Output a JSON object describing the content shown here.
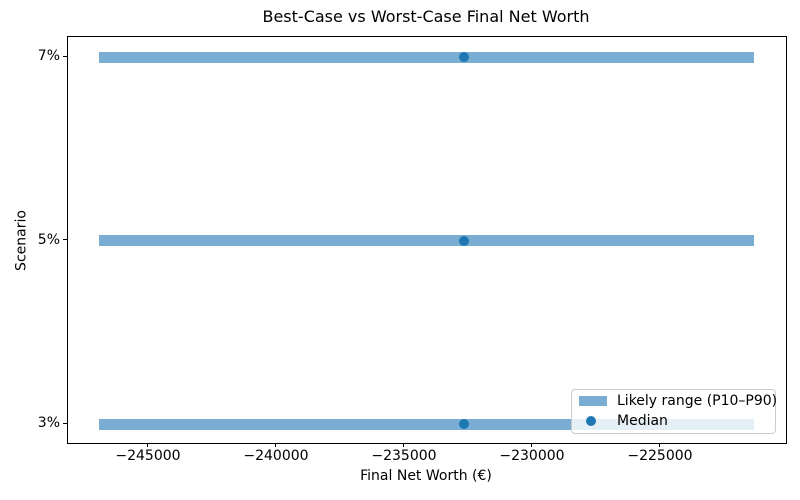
{
  "chart_data": {
    "type": "hbar-range",
    "title": "Best-Case vs Worst-Case Final Net Worth",
    "xlabel": "Final Net Worth (€)",
    "ylabel": "Scenario",
    "categories": [
      "7%",
      "5%",
      "3%"
    ],
    "rows": [
      {
        "scenario": "7%",
        "p10": -246950,
        "median": -232700,
        "p90": -221350
      },
      {
        "scenario": "5%",
        "p10": -246950,
        "median": -232700,
        "p90": -221350
      },
      {
        "scenario": "3%",
        "p10": -246950,
        "median": -232700,
        "p90": -221350
      }
    ],
    "x_axis": {
      "tick_values": [
        -245000,
        -240000,
        -235000,
        -230000,
        -225000
      ],
      "tick_labels": [
        "−245000",
        "−240000",
        "−235000",
        "−230000",
        "−225000"
      ],
      "range": [
        -248164,
        -220117
      ]
    },
    "legend": {
      "position": "lower right",
      "entries": [
        {
          "label": "Likely range (P10–P90)",
          "marker": "range-bar"
        },
        {
          "label": "Median",
          "marker": "median-dot"
        }
      ]
    },
    "colors": {
      "range_bar": "#1f77b4",
      "range_bar_alpha": 0.6,
      "median_dot": "#1f77b4",
      "background": "#ffffff",
      "text": "#000000",
      "legend_border": "#cccccc"
    },
    "grid": false
  }
}
